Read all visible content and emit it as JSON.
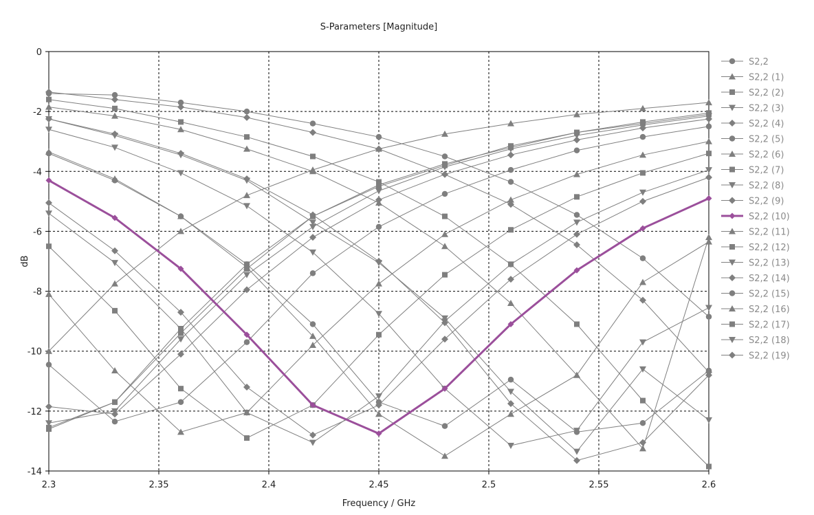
{
  "chart_data": {
    "type": "line",
    "title": "S-Parameters [Magnitude]",
    "xlabel": "Frequency / GHz",
    "ylabel": "dB",
    "xlim": [
      2.3,
      2.6
    ],
    "ylim": [
      -14,
      0
    ],
    "x_ticks": [
      "2.3",
      "2.35",
      "2.4",
      "2.45",
      "2.5",
      "2.55",
      "2.6"
    ],
    "y_ticks": [
      "0",
      "-2",
      "-4",
      "-6",
      "-8",
      "-10",
      "-12",
      "-14"
    ],
    "grid": true,
    "legend_position": "right",
    "colors": {
      "default": "#7f7f7f",
      "highlight": "#9b4f9b"
    },
    "highlight_series": 10,
    "x": [
      2.3,
      2.33,
      2.36,
      2.39,
      2.42,
      2.45,
      2.48,
      2.51,
      2.54,
      2.57,
      2.6
    ],
    "series": [
      {
        "name": "S2,2",
        "marker": "circle",
        "values": [
          -1.4,
          -1.45,
          -1.7,
          -2.0,
          -2.4,
          -2.85,
          -3.5,
          -4.35,
          -5.45,
          -6.9,
          -8.85
        ]
      },
      {
        "name": "S2,2 (1)",
        "marker": "triangle-up",
        "values": [
          -1.85,
          -2.15,
          -2.6,
          -3.25,
          -4.0,
          -5.05,
          -6.5,
          -8.4,
          -10.8,
          -13.25,
          -6.2
        ]
      },
      {
        "name": "S2,2 (2)",
        "marker": "square",
        "values": [
          -1.6,
          -1.9,
          -2.35,
          -2.85,
          -3.5,
          -4.35,
          -5.5,
          -7.1,
          -9.1,
          -11.65,
          -13.85
        ]
      },
      {
        "name": "S2,2 (3)",
        "marker": "triangle-down",
        "values": [
          -2.6,
          -3.2,
          -4.05,
          -5.15,
          -6.7,
          -8.75,
          -11.25,
          -13.15,
          -12.65,
          -9.7,
          -8.55
        ]
      },
      {
        "name": "S2,2 (4)",
        "marker": "diamond",
        "values": [
          -2.25,
          -2.75,
          -3.4,
          -4.25,
          -5.45,
          -7.0,
          -9.05,
          -11.75,
          -13.65,
          -13.05,
          -10.8
        ]
      },
      {
        "name": "S2,2 (5)",
        "marker": "circle",
        "values": [
          -3.4,
          -4.3,
          -5.5,
          -7.1,
          -9.1,
          -11.7,
          -12.5,
          -10.95,
          -12.7,
          -12.4,
          -10.65
        ]
      },
      {
        "name": "S2,2 (6)",
        "marker": "triangle-up",
        "values": [
          -8.1,
          -10.65,
          -12.7,
          -12.05,
          -9.8,
          -7.75,
          -6.1,
          -4.95,
          -4.1,
          -3.45,
          -3.0
        ]
      },
      {
        "name": "S2,2 (7)",
        "marker": "square",
        "values": [
          -6.5,
          -8.65,
          -11.25,
          -12.9,
          -11.8,
          -9.45,
          -7.45,
          -5.95,
          -4.85,
          -4.05,
          -3.4
        ]
      },
      {
        "name": "S2,2 (8)",
        "marker": "triangle-down",
        "values": [
          -5.4,
          -7.05,
          -9.25,
          -12.05,
          -13.05,
          -11.5,
          -9.0,
          -7.1,
          -5.7,
          -4.7,
          -3.95
        ]
      },
      {
        "name": "S2,2 (9)",
        "marker": "diamond",
        "values": [
          -5.05,
          -6.65,
          -8.7,
          -11.2,
          -12.8,
          -11.8,
          -9.6,
          -7.6,
          -6.1,
          -5.0,
          -4.2
        ]
      },
      {
        "name": "S2,2 (10)",
        "marker": "diamond",
        "values": [
          -4.3,
          -5.55,
          -7.25,
          -9.45,
          -11.8,
          -12.75,
          -11.25,
          -9.1,
          -7.3,
          -5.9,
          -4.9
        ]
      },
      {
        "name": "S2,2 (11)",
        "marker": "triangle-up",
        "values": [
          -10.0,
          -7.75,
          -6.0,
          -4.8,
          -3.95,
          -3.25,
          -2.75,
          -2.4,
          -2.1,
          -1.9,
          -1.7
        ]
      },
      {
        "name": "S2,2 (12)",
        "marker": "square",
        "values": [
          -12.55,
          -11.7,
          -9.25,
          -7.1,
          -5.5,
          -4.45,
          -3.75,
          -3.2,
          -2.7,
          -2.4,
          -2.1
        ]
      },
      {
        "name": "S2,2 (13)",
        "marker": "triangle-down",
        "values": [
          -12.4,
          -12.0,
          -9.6,
          -7.45,
          -5.85,
          -4.65,
          -3.85,
          -3.25,
          -2.8,
          -2.45,
          -2.15
        ]
      },
      {
        "name": "S2,2 (14)",
        "marker": "diamond",
        "values": [
          -11.85,
          -12.1,
          -10.1,
          -7.95,
          -6.2,
          -4.95,
          -4.1,
          -3.45,
          -2.95,
          -2.55,
          -2.25
        ]
      },
      {
        "name": "S2,2 (15)",
        "marker": "circle",
        "values": [
          -10.45,
          -12.35,
          -11.7,
          -9.7,
          -7.4,
          -5.85,
          -4.75,
          -3.95,
          -3.3,
          -2.85,
          -2.5
        ]
      },
      {
        "name": "S2,2 (16)",
        "marker": "triangle-up",
        "values": [
          -3.35,
          -4.25,
          -5.5,
          -7.2,
          -9.5,
          -12.1,
          -13.5,
          -12.1,
          -10.8,
          -7.7,
          -6.35
        ]
      },
      {
        "name": "S2,2 (17)",
        "marker": "square",
        "values": [
          -12.6,
          -11.7,
          -9.4,
          -7.25,
          -5.5,
          -4.5,
          -3.8,
          -3.15,
          -2.7,
          -2.35,
          -2.05
        ]
      },
      {
        "name": "S2,2 (18)",
        "marker": "triangle-down",
        "values": [
          -2.25,
          -2.8,
          -3.45,
          -4.3,
          -5.7,
          -7.05,
          -8.9,
          -11.35,
          -13.35,
          -10.6,
          -12.3
        ]
      },
      {
        "name": "S2,2 (19)",
        "marker": "diamond",
        "values": [
          -1.35,
          -1.6,
          -1.85,
          -2.2,
          -2.7,
          -3.25,
          -4.1,
          -5.1,
          -6.45,
          -8.3,
          -10.7
        ]
      }
    ]
  }
}
